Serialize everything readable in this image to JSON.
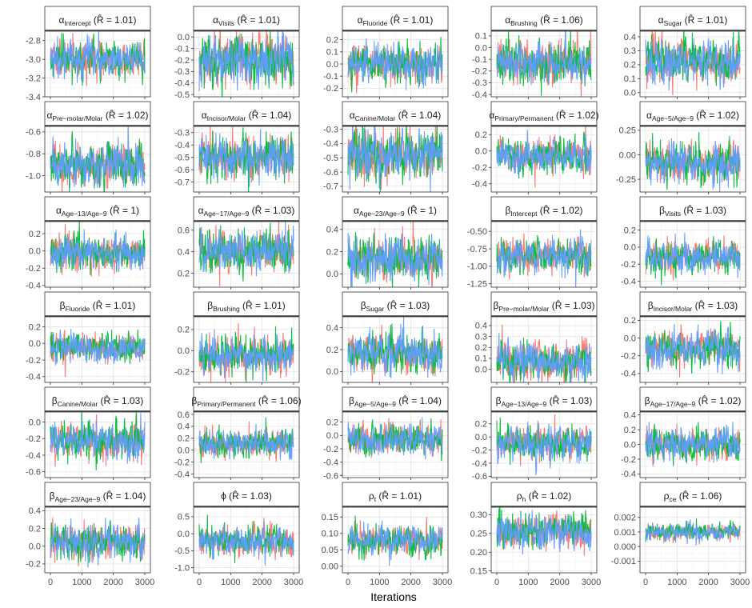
{
  "chart_data": {
    "type": "line",
    "xlabel": "Iterations",
    "xlim": [
      0,
      3000
    ],
    "xticks": [
      0,
      1000,
      2000,
      3000
    ],
    "xtick_labels": [
      "0",
      "1000",
      "2000",
      "3000"
    ],
    "grid": true,
    "series": [
      {
        "color": "#F8766D"
      },
      {
        "color": "#00BA38"
      },
      {
        "color": "#619CFF"
      }
    ],
    "panels": [
      {
        "symbol": "α",
        "sub": "Intercept",
        "rhat": "1.01",
        "center": -3.0,
        "spread": 0.09,
        "ylim": [
          -3.4,
          -2.7
        ],
        "yticks": [
          -3.4,
          -3.2,
          -3.0,
          -2.8
        ],
        "ytick_labels": [
          "-3.4",
          "-3.2",
          "-3.0",
          "-2.8"
        ]
      },
      {
        "symbol": "α",
        "sub": "Visits",
        "rhat": "1.01",
        "center": -0.2,
        "spread": 0.1,
        "ylim": [
          -0.52,
          0.05
        ],
        "yticks": [
          -0.5,
          -0.4,
          -0.3,
          -0.2,
          -0.1,
          0.0
        ],
        "ytick_labels": [
          "-0.5",
          "-0.4",
          "-0.3",
          "-0.2",
          "-0.1",
          "0.0"
        ]
      },
      {
        "symbol": "α",
        "sub": "Fluoride",
        "rhat": "1.01",
        "center": 0.0,
        "spread": 0.07,
        "ylim": [
          -0.27,
          0.27
        ],
        "yticks": [
          -0.2,
          -0.1,
          0.0,
          0.1,
          0.2
        ],
        "ytick_labels": [
          "-0.2",
          "-0.1",
          "0.0",
          "0.1",
          "0.2"
        ]
      },
      {
        "symbol": "α",
        "sub": "Brushing",
        "rhat": "1.06",
        "center": -0.12,
        "spread": 0.08,
        "ylim": [
          -0.42,
          0.14
        ],
        "yticks": [
          -0.4,
          -0.3,
          -0.2,
          -0.1,
          0.0,
          0.1
        ],
        "ytick_labels": [
          "-0.4",
          "-0.3",
          "-0.2",
          "-0.1",
          "0.0",
          "0.1"
        ]
      },
      {
        "symbol": "α",
        "sub": "Sugar",
        "rhat": "1.01",
        "center": 0.23,
        "spread": 0.07,
        "ylim": [
          -0.03,
          0.44
        ],
        "yticks": [
          0.0,
          0.1,
          0.2,
          0.3,
          0.4
        ],
        "ytick_labels": [
          "0.0",
          "0.1",
          "0.2",
          "0.3",
          "0.4"
        ]
      },
      {
        "symbol": "α",
        "sub": "Pre−molar/Molar",
        "rhat": "1.02",
        "center": -0.9,
        "spread": 0.09,
        "ylim": [
          -1.15,
          -0.55
        ],
        "yticks": [
          -1.0,
          -0.8,
          -0.6
        ],
        "ytick_labels": [
          "-1.0",
          "-0.8",
          "-0.6"
        ]
      },
      {
        "symbol": "α",
        "sub": "Incisor/Molar",
        "rhat": "1.04",
        "center": -0.5,
        "spread": 0.08,
        "ylim": [
          -0.78,
          -0.25
        ],
        "yticks": [
          -0.7,
          -0.6,
          -0.5,
          -0.4,
          -0.3
        ],
        "ytick_labels": [
          "-0.7",
          "-0.6",
          "-0.5",
          "-0.4",
          "-0.3"
        ]
      },
      {
        "symbol": "α",
        "sub": "Canine/Molar",
        "rhat": "1.04",
        "center": -0.48,
        "spread": 0.08,
        "ylim": [
          -0.74,
          -0.28
        ],
        "yticks": [
          -0.7,
          -0.6,
          -0.5,
          -0.4,
          -0.3
        ],
        "ytick_labels": [
          "-0.7",
          "-0.6",
          "-0.5",
          "-0.4",
          "-0.3"
        ]
      },
      {
        "symbol": "α",
        "sub": "Primary/Permanent",
        "rhat": "1.02",
        "center": -0.05,
        "spread": 0.09,
        "ylim": [
          -0.5,
          0.3
        ],
        "yticks": [
          -0.4,
          -0.2,
          0.0,
          0.2
        ],
        "ytick_labels": [
          "-0.4",
          "-0.2",
          "0.0",
          "0.2"
        ]
      },
      {
        "symbol": "α",
        "sub": "Age−5/Age−9",
        "rhat": "1.02",
        "center": -0.08,
        "spread": 0.09,
        "ylim": [
          -0.38,
          0.29
        ],
        "yticks": [
          -0.25,
          0.0,
          0.25
        ],
        "ytick_labels": [
          "-0.25",
          "0.00",
          "0.25"
        ]
      },
      {
        "symbol": "α",
        "sub": "Age−13/Age−9",
        "rhat": "1",
        "center": -0.02,
        "spread": 0.09,
        "ylim": [
          -0.42,
          0.34
        ],
        "yticks": [
          -0.4,
          -0.2,
          0.0,
          0.2
        ],
        "ytick_labels": [
          "-0.4",
          "-0.2",
          "0.0",
          "0.2"
        ]
      },
      {
        "symbol": "α",
        "sub": "Age−17/Age−9",
        "rhat": "1.03",
        "center": 0.4,
        "spread": 0.09,
        "ylim": [
          0.07,
          0.68
        ],
        "yticks": [
          0.2,
          0.4,
          0.6
        ],
        "ytick_labels": [
          "0.2",
          "0.4",
          "0.6"
        ]
      },
      {
        "symbol": "α",
        "sub": "Age−23/Age−9",
        "rhat": "1",
        "center": 0.13,
        "spread": 0.09,
        "ylim": [
          -0.12,
          0.47
        ],
        "yticks": [
          0.0,
          0.2,
          0.4
        ],
        "ytick_labels": [
          "0.0",
          "0.2",
          "0.4"
        ]
      },
      {
        "symbol": "β",
        "sub": "Intercept",
        "rhat": "1.02",
        "center": -0.85,
        "spread": 0.11,
        "ylim": [
          -1.3,
          -0.36
        ],
        "yticks": [
          -1.25,
          -1.0,
          -0.75,
          -0.5
        ],
        "ytick_labels": [
          "-1.25",
          "-1.00",
          "-0.75",
          "-0.50"
        ]
      },
      {
        "symbol": "β",
        "sub": "Visits",
        "rhat": "1.03",
        "center": -0.12,
        "spread": 0.08,
        "ylim": [
          -0.47,
          0.3
        ],
        "yticks": [
          -0.4,
          -0.2,
          0.0,
          0.2
        ],
        "ytick_labels": [
          "-0.4",
          "-0.2",
          "0.0",
          "0.2"
        ]
      },
      {
        "symbol": "β",
        "sub": "Fluoride",
        "rhat": "1.01",
        "center": -0.05,
        "spread": 0.08,
        "ylim": [
          -0.47,
          0.32
        ],
        "yticks": [
          -0.4,
          -0.2,
          0.0,
          0.2
        ],
        "ytick_labels": [
          "-0.4",
          "-0.2",
          "0.0",
          "0.2"
        ]
      },
      {
        "symbol": "β",
        "sub": "Brushing",
        "rhat": "1.01",
        "center": -0.05,
        "spread": 0.08,
        "ylim": [
          -0.3,
          0.32
        ],
        "yticks": [
          -0.2,
          0.0,
          0.2
        ],
        "ytick_labels": [
          "-0.2",
          "0.0",
          "0.2"
        ]
      },
      {
        "symbol": "β",
        "sub": "Sugar",
        "rhat": "1.03",
        "center": 0.17,
        "spread": 0.08,
        "ylim": [
          -0.1,
          0.5
        ],
        "yticks": [
          0.0,
          0.2,
          0.4
        ],
        "ytick_labels": [
          "0.0",
          "0.2",
          "0.4"
        ]
      },
      {
        "symbol": "β",
        "sub": "Pre−molar/Molar",
        "rhat": "1.03",
        "center": 0.07,
        "spread": 0.08,
        "ylim": [
          -0.12,
          0.48
        ],
        "yticks": [
          0.0,
          0.1,
          0.2,
          0.3,
          0.4
        ],
        "ytick_labels": [
          "0.0",
          "0.1",
          "0.2",
          "0.3",
          "0.4"
        ]
      },
      {
        "symbol": "β",
        "sub": "Incisor/Molar",
        "rhat": "1.03",
        "center": -0.12,
        "spread": 0.09,
        "ylim": [
          -0.5,
          0.24
        ],
        "yticks": [
          -0.4,
          -0.2,
          0.0,
          0.2
        ],
        "ytick_labels": [
          "-0.4",
          "-0.2",
          "0.0",
          "0.2"
        ]
      },
      {
        "symbol": "β",
        "sub": "Canine/Molar",
        "rhat": "1.03",
        "center": -0.22,
        "spread": 0.1,
        "ylim": [
          -0.67,
          0.12
        ],
        "yticks": [
          -0.6,
          -0.4,
          -0.2,
          0.0
        ],
        "ytick_labels": [
          "-0.6",
          "-0.4",
          "-0.2",
          "0.0"
        ]
      },
      {
        "symbol": "β",
        "sub": "Primary/Permanent",
        "rhat": "1.06",
        "center": 0.12,
        "spread": 0.1,
        "ylim": [
          -0.46,
          0.64
        ],
        "yticks": [
          -0.4,
          -0.2,
          0.0,
          0.2,
          0.4,
          0.6
        ],
        "ytick_labels": [
          "-0.4",
          "-0.2",
          "0.0",
          "0.2",
          "0.4",
          "0.6"
        ]
      },
      {
        "symbol": "β",
        "sub": "Age−5/Age−9",
        "rhat": "1.04",
        "center": -0.05,
        "spread": 0.1,
        "ylim": [
          -0.63,
          0.35
        ],
        "yticks": [
          -0.6,
          -0.4,
          -0.2,
          0.0,
          0.2
        ],
        "ytick_labels": [
          "-0.6",
          "-0.4",
          "-0.2",
          "0.0",
          "0.2"
        ]
      },
      {
        "symbol": "β",
        "sub": "Age−13/Age−9",
        "rhat": "1.03",
        "center": -0.1,
        "spread": 0.12,
        "ylim": [
          -0.62,
          0.38
        ],
        "yticks": [
          -0.6,
          -0.4,
          -0.2,
          0.0,
          0.2
        ],
        "ytick_labels": [
          "-0.6",
          "-0.4",
          "-0.2",
          "0.0",
          "0.2"
        ]
      },
      {
        "symbol": "β",
        "sub": "Age−17/Age−9",
        "rhat": "1.02",
        "center": 0.0,
        "spread": 0.1,
        "ylim": [
          -0.45,
          0.44
        ],
        "yticks": [
          -0.4,
          -0.2,
          0.0,
          0.2,
          0.4
        ],
        "ytick_labels": [
          "-0.4",
          "-0.2",
          "0.0",
          "0.2",
          "0.4"
        ]
      },
      {
        "symbol": "β",
        "sub": "Age−23/Age−9",
        "rhat": "1.04",
        "center": 0.05,
        "spread": 0.09,
        "ylim": [
          -0.3,
          0.44
        ],
        "yticks": [
          -0.2,
          0.0,
          0.2,
          0.4
        ],
        "ytick_labels": [
          "-0.2",
          "0.0",
          "0.2",
          "0.4"
        ]
      },
      {
        "symbol": "ϕ",
        "sub": "",
        "rhat": "1.03",
        "center": -0.2,
        "spread": 0.2,
        "ylim": [
          -1.15,
          0.78
        ],
        "yticks": [
          -1.0,
          -0.5,
          0.0,
          0.5
        ],
        "ytick_labels": [
          "-1.0",
          "-0.5",
          "0.0",
          "0.5"
        ]
      },
      {
        "symbol": "ρ",
        "sub": "t",
        "rhat": "1.01",
        "center": 0.08,
        "spread": 0.02,
        "ylim": [
          -0.02,
          0.18
        ],
        "yticks": [
          0.0,
          0.05,
          0.1,
          0.15
        ],
        "ytick_labels": [
          "0.00",
          "0.05",
          "0.10",
          "0.15"
        ]
      },
      {
        "symbol": "ρ",
        "sub": "h",
        "rhat": "1.02",
        "center": 0.255,
        "spread": 0.02,
        "ylim": [
          0.145,
          0.32
        ],
        "yticks": [
          0.15,
          0.2,
          0.25,
          0.3
        ],
        "ytick_labels": [
          "0.15",
          "0.20",
          "0.25",
          "0.30"
        ]
      },
      {
        "symbol": "ρ",
        "sub": "ce",
        "rhat": "1.06",
        "center": 0.001,
        "spread": 0.00025,
        "ylim": [
          -0.0018,
          0.0027
        ],
        "yticks": [
          -0.001,
          0.0,
          0.001,
          0.002
        ],
        "ytick_labels": [
          "-0.001",
          "0.000",
          "0.001",
          "0.002"
        ]
      }
    ]
  }
}
